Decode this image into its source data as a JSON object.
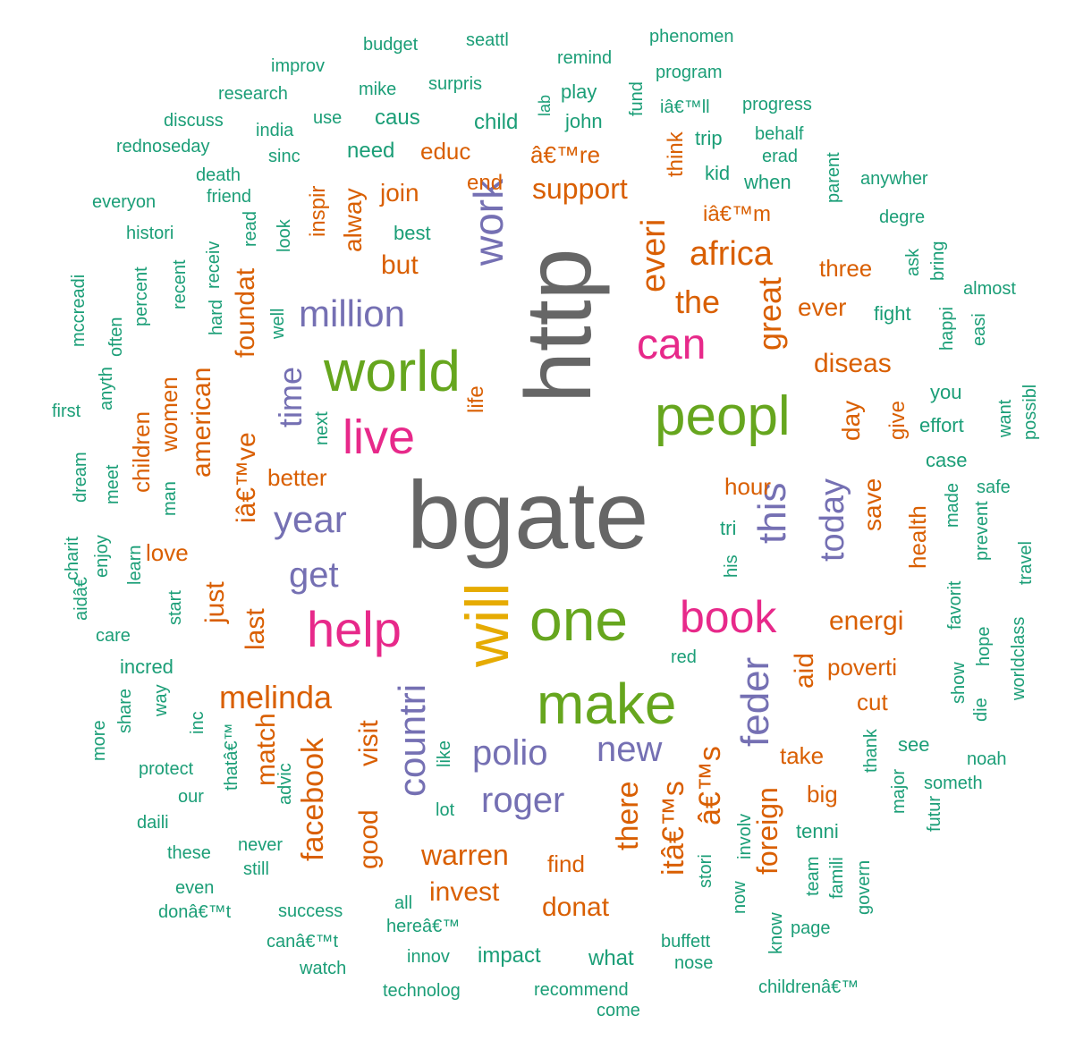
{
  "palette": {
    "t1": "#1b9e77",
    "t2": "#d95f02",
    "t3": "#7570b3",
    "t4": "#e7298a",
    "t5": "#66a61e",
    "t6": "#e6ab02",
    "t7": "#666666"
  },
  "words": [
    {
      "text": "bgate",
      "tier": "t7",
      "vertical": false
    },
    {
      "text": "http",
      "tier": "t7",
      "vertical": true
    },
    {
      "text": "will",
      "tier": "t6",
      "vertical": true
    },
    {
      "text": "world",
      "tier": "t5",
      "vertical": false
    },
    {
      "text": "peopl",
      "tier": "t5",
      "vertical": false
    },
    {
      "text": "one",
      "tier": "t5",
      "vertical": false
    },
    {
      "text": "make",
      "tier": "t5",
      "vertical": false
    },
    {
      "text": "live",
      "tier": "t4",
      "vertical": false
    },
    {
      "text": "can",
      "tier": "t4",
      "vertical": false
    },
    {
      "text": "help",
      "tier": "t4",
      "vertical": false
    },
    {
      "text": "book",
      "tier": "t4",
      "vertical": false
    },
    {
      "text": "million",
      "tier": "t3",
      "vertical": false
    },
    {
      "text": "work",
      "tier": "t3",
      "vertical": true
    },
    {
      "text": "year",
      "tier": "t3",
      "vertical": false
    },
    {
      "text": "get",
      "tier": "t3",
      "vertical": false
    },
    {
      "text": "time",
      "tier": "t3",
      "vertical": true
    },
    {
      "text": "this",
      "tier": "t3",
      "vertical": true
    },
    {
      "text": "today",
      "tier": "t3",
      "vertical": true
    },
    {
      "text": "feder",
      "tier": "t3",
      "vertical": true
    },
    {
      "text": "polio",
      "tier": "t3",
      "vertical": false
    },
    {
      "text": "new",
      "tier": "t3",
      "vertical": false
    },
    {
      "text": "roger",
      "tier": "t3",
      "vertical": false
    },
    {
      "text": "countri",
      "tier": "t3",
      "vertical": true
    },
    {
      "text": "africa",
      "tier": "t2",
      "vertical": false
    },
    {
      "text": "everi",
      "tier": "t2",
      "vertical": true
    },
    {
      "text": "the",
      "tier": "t2",
      "vertical": false
    },
    {
      "text": "great",
      "tier": "t2",
      "vertical": true
    },
    {
      "text": "support",
      "tier": "t2",
      "vertical": false
    },
    {
      "text": "join",
      "tier": "t2",
      "vertical": false
    },
    {
      "text": "but",
      "tier": "t2",
      "vertical": false
    },
    {
      "text": "alway",
      "tier": "t2",
      "vertical": true
    },
    {
      "text": "inspir",
      "tier": "t2",
      "vertical": true
    },
    {
      "text": "foundat",
      "tier": "t2",
      "vertical": true
    },
    {
      "text": "iâ€™ve",
      "tier": "t2",
      "vertical": true
    },
    {
      "text": "american",
      "tier": "t2",
      "vertical": true
    },
    {
      "text": "melinda",
      "tier": "t2",
      "vertical": false
    },
    {
      "text": "just",
      "tier": "t2",
      "vertical": true
    },
    {
      "text": "last",
      "tier": "t2",
      "vertical": true
    },
    {
      "text": "energi",
      "tier": "t2",
      "vertical": false
    },
    {
      "text": "aid",
      "tier": "t2",
      "vertical": true
    },
    {
      "text": "diseas",
      "tier": "t2",
      "vertical": false
    },
    {
      "text": "ever",
      "tier": "t2",
      "vertical": false
    },
    {
      "text": "three",
      "tier": "t2",
      "vertical": false
    },
    {
      "text": "day",
      "tier": "t2",
      "vertical": true
    },
    {
      "text": "save",
      "tier": "t2",
      "vertical": true
    },
    {
      "text": "hour",
      "tier": "t2",
      "vertical": false
    },
    {
      "text": "poverti",
      "tier": "t2",
      "vertical": false
    },
    {
      "text": "cut",
      "tier": "t2",
      "vertical": false
    },
    {
      "text": "take",
      "tier": "t2",
      "vertical": false
    },
    {
      "text": "big",
      "tier": "t2",
      "vertical": false
    },
    {
      "text": "warren",
      "tier": "t2",
      "vertical": false
    },
    {
      "text": "invest",
      "tier": "t2",
      "vertical": false
    },
    {
      "text": "donat",
      "tier": "t2",
      "vertical": false
    },
    {
      "text": "find",
      "tier": "t2",
      "vertical": false
    },
    {
      "text": "there",
      "tier": "t2",
      "vertical": true
    },
    {
      "text": "itâ€™s",
      "tier": "t2",
      "vertical": true
    },
    {
      "text": "â€™s",
      "tier": "t2",
      "vertical": true
    },
    {
      "text": "foreign",
      "tier": "t2",
      "vertical": true
    },
    {
      "text": "facebook",
      "tier": "t2",
      "vertical": true
    },
    {
      "text": "good",
      "tier": "t2",
      "vertical": true
    },
    {
      "text": "visit",
      "tier": "t2",
      "vertical": true
    },
    {
      "text": "match",
      "tier": "t2",
      "vertical": true
    },
    {
      "text": "love",
      "tier": "t2",
      "vertical": false
    },
    {
      "text": "better",
      "tier": "t2",
      "vertical": false
    },
    {
      "text": "women",
      "tier": "t2",
      "vertical": true
    },
    {
      "text": "children",
      "tier": "t2",
      "vertical": true
    },
    {
      "text": "life",
      "tier": "t2",
      "vertical": true
    },
    {
      "text": "end",
      "tier": "t2",
      "vertical": false
    },
    {
      "text": "educ",
      "tier": "t2",
      "vertical": false
    },
    {
      "text": "â€™re",
      "tier": "t2",
      "vertical": false
    },
    {
      "text": "think",
      "tier": "t2",
      "vertical": true
    },
    {
      "text": "iâ€™m",
      "tier": "t2",
      "vertical": false
    },
    {
      "text": "give",
      "tier": "t2",
      "vertical": true
    },
    {
      "text": "health",
      "tier": "t2",
      "vertical": true
    },
    {
      "text": "budget",
      "tier": "t1",
      "vertical": false
    },
    {
      "text": "seattl",
      "tier": "t1",
      "vertical": false
    },
    {
      "text": "phenomen",
      "tier": "t1",
      "vertical": false
    },
    {
      "text": "improv",
      "tier": "t1",
      "vertical": false
    },
    {
      "text": "remind",
      "tier": "t1",
      "vertical": false
    },
    {
      "text": "program",
      "tier": "t1",
      "vertical": false
    },
    {
      "text": "research",
      "tier": "t1",
      "vertical": false
    },
    {
      "text": "mike",
      "tier": "t1",
      "vertical": false
    },
    {
      "text": "surpris",
      "tier": "t1",
      "vertical": false
    },
    {
      "text": "play",
      "tier": "t1",
      "vertical": false
    },
    {
      "text": "fund",
      "tier": "t1",
      "vertical": true
    },
    {
      "text": "discuss",
      "tier": "t1",
      "vertical": false
    },
    {
      "text": "use",
      "tier": "t1",
      "vertical": false
    },
    {
      "text": "caus",
      "tier": "t1",
      "vertical": false
    },
    {
      "text": "child",
      "tier": "t1",
      "vertical": false
    },
    {
      "text": "lab",
      "tier": "t1",
      "vertical": true
    },
    {
      "text": "john",
      "tier": "t1",
      "vertical": false
    },
    {
      "text": "iâ€™ll",
      "tier": "t1",
      "vertical": false
    },
    {
      "text": "progress",
      "tier": "t1",
      "vertical": false
    },
    {
      "text": "india",
      "tier": "t1",
      "vertical": false
    },
    {
      "text": "rednoseday",
      "tier": "t1",
      "vertical": false
    },
    {
      "text": "sinc",
      "tier": "t1",
      "vertical": false
    },
    {
      "text": "need",
      "tier": "t1",
      "vertical": false
    },
    {
      "text": "trip",
      "tier": "t1",
      "vertical": false
    },
    {
      "text": "behalf",
      "tier": "t1",
      "vertical": false
    },
    {
      "text": "erad",
      "tier": "t1",
      "vertical": false
    },
    {
      "text": "death",
      "tier": "t1",
      "vertical": false
    },
    {
      "text": "kid",
      "tier": "t1",
      "vertical": false
    },
    {
      "text": "when",
      "tier": "t1",
      "vertical": false
    },
    {
      "text": "parent",
      "tier": "t1",
      "vertical": true
    },
    {
      "text": "anywher",
      "tier": "t1",
      "vertical": false
    },
    {
      "text": "everyon",
      "tier": "t1",
      "vertical": false
    },
    {
      "text": "friend",
      "tier": "t1",
      "vertical": false
    },
    {
      "text": "degre",
      "tier": "t1",
      "vertical": false
    },
    {
      "text": "histori",
      "tier": "t1",
      "vertical": false
    },
    {
      "text": "read",
      "tier": "t1",
      "vertical": true
    },
    {
      "text": "look",
      "tier": "t1",
      "vertical": true
    },
    {
      "text": "best",
      "tier": "t1",
      "vertical": false
    },
    {
      "text": "receiv",
      "tier": "t1",
      "vertical": true
    },
    {
      "text": "ask",
      "tier": "t1",
      "vertical": true
    },
    {
      "text": "bring",
      "tier": "t1",
      "vertical": true
    },
    {
      "text": "almost",
      "tier": "t1",
      "vertical": false
    },
    {
      "text": "recent",
      "tier": "t1",
      "vertical": true
    },
    {
      "text": "percent",
      "tier": "t1",
      "vertical": true
    },
    {
      "text": "hard",
      "tier": "t1",
      "vertical": true
    },
    {
      "text": "well",
      "tier": "t1",
      "vertical": true
    },
    {
      "text": "happi",
      "tier": "t1",
      "vertical": true
    },
    {
      "text": "easi",
      "tier": "t1",
      "vertical": true
    },
    {
      "text": "mccreadi",
      "tier": "t1",
      "vertical": true
    },
    {
      "text": "often",
      "tier": "t1",
      "vertical": true
    },
    {
      "text": "fight",
      "tier": "t1",
      "vertical": false
    },
    {
      "text": "you",
      "tier": "t1",
      "vertical": false
    },
    {
      "text": "effort",
      "tier": "t1",
      "vertical": false
    },
    {
      "text": "want",
      "tier": "t1",
      "vertical": true
    },
    {
      "text": "possibl",
      "tier": "t1",
      "vertical": true
    },
    {
      "text": "first",
      "tier": "t1",
      "vertical": false
    },
    {
      "text": "anyth",
      "tier": "t1",
      "vertical": true
    },
    {
      "text": "next",
      "tier": "t1",
      "vertical": true
    },
    {
      "text": "case",
      "tier": "t1",
      "vertical": false
    },
    {
      "text": "dream",
      "tier": "t1",
      "vertical": true
    },
    {
      "text": "meet",
      "tier": "t1",
      "vertical": true
    },
    {
      "text": "man",
      "tier": "t1",
      "vertical": true
    },
    {
      "text": "made",
      "tier": "t1",
      "vertical": true
    },
    {
      "text": "safe",
      "tier": "t1",
      "vertical": false
    },
    {
      "text": "prevent",
      "tier": "t1",
      "vertical": true
    },
    {
      "text": "tri",
      "tier": "t1",
      "vertical": false
    },
    {
      "text": "charit",
      "tier": "t1",
      "vertical": true
    },
    {
      "text": "enjoy",
      "tier": "t1",
      "vertical": true
    },
    {
      "text": "learn",
      "tier": "t1",
      "vertical": true
    },
    {
      "text": "his",
      "tier": "t1",
      "vertical": true
    },
    {
      "text": "travel",
      "tier": "t1",
      "vertical": true
    },
    {
      "text": "favorit",
      "tier": "t1",
      "vertical": true
    },
    {
      "text": "aidâ€",
      "tier": "t1",
      "vertical": true
    },
    {
      "text": "care",
      "tier": "t1",
      "vertical": false
    },
    {
      "text": "start",
      "tier": "t1",
      "vertical": true
    },
    {
      "text": "hope",
      "tier": "t1",
      "vertical": true
    },
    {
      "text": "worldclass",
      "tier": "t1",
      "vertical": true
    },
    {
      "text": "red",
      "tier": "t1",
      "vertical": false
    },
    {
      "text": "incred",
      "tier": "t1",
      "vertical": false
    },
    {
      "text": "show",
      "tier": "t1",
      "vertical": true
    },
    {
      "text": "die",
      "tier": "t1",
      "vertical": true
    },
    {
      "text": "way",
      "tier": "t1",
      "vertical": true
    },
    {
      "text": "share",
      "tier": "t1",
      "vertical": true
    },
    {
      "text": "inc",
      "tier": "t1",
      "vertical": true
    },
    {
      "text": "more",
      "tier": "t1",
      "vertical": true
    },
    {
      "text": "see",
      "tier": "t1",
      "vertical": false
    },
    {
      "text": "noah",
      "tier": "t1",
      "vertical": false
    },
    {
      "text": "protect",
      "tier": "t1",
      "vertical": false
    },
    {
      "text": "thank",
      "tier": "t1",
      "vertical": true
    },
    {
      "text": "our",
      "tier": "t1",
      "vertical": false
    },
    {
      "text": "thatâ€™",
      "tier": "t1",
      "vertical": true
    },
    {
      "text": "advic",
      "tier": "t1",
      "vertical": true
    },
    {
      "text": "like",
      "tier": "t1",
      "vertical": true
    },
    {
      "text": "lot",
      "tier": "t1",
      "vertical": false
    },
    {
      "text": "involv",
      "tier": "t1",
      "vertical": true
    },
    {
      "text": "major",
      "tier": "t1",
      "vertical": true
    },
    {
      "text": "someth",
      "tier": "t1",
      "vertical": false
    },
    {
      "text": "daili",
      "tier": "t1",
      "vertical": false
    },
    {
      "text": "tenni",
      "tier": "t1",
      "vertical": false
    },
    {
      "text": "futur",
      "tier": "t1",
      "vertical": true
    },
    {
      "text": "these",
      "tier": "t1",
      "vertical": false
    },
    {
      "text": "never",
      "tier": "t1",
      "vertical": false
    },
    {
      "text": "still",
      "tier": "t1",
      "vertical": false
    },
    {
      "text": "team",
      "tier": "t1",
      "vertical": true
    },
    {
      "text": "famili",
      "tier": "t1",
      "vertical": true
    },
    {
      "text": "govern",
      "tier": "t1",
      "vertical": true
    },
    {
      "text": "even",
      "tier": "t1",
      "vertical": false
    },
    {
      "text": "all",
      "tier": "t1",
      "vertical": false
    },
    {
      "text": "stori",
      "tier": "t1",
      "vertical": true
    },
    {
      "text": "now",
      "tier": "t1",
      "vertical": true
    },
    {
      "text": "donâ€™t",
      "tier": "t1",
      "vertical": false
    },
    {
      "text": "success",
      "tier": "t1",
      "vertical": false
    },
    {
      "text": "hereâ€™",
      "tier": "t1",
      "vertical": false
    },
    {
      "text": "know",
      "tier": "t1",
      "vertical": true
    },
    {
      "text": "page",
      "tier": "t1",
      "vertical": false
    },
    {
      "text": "canâ€™t",
      "tier": "t1",
      "vertical": false
    },
    {
      "text": "impact",
      "tier": "t1",
      "vertical": false
    },
    {
      "text": "buffett",
      "tier": "t1",
      "vertical": false
    },
    {
      "text": "innov",
      "tier": "t1",
      "vertical": false
    },
    {
      "text": "what",
      "tier": "t1",
      "vertical": false
    },
    {
      "text": "nose",
      "tier": "t1",
      "vertical": false
    },
    {
      "text": "watch",
      "tier": "t1",
      "vertical": false
    },
    {
      "text": "childrenâ€™",
      "tier": "t1",
      "vertical": false
    },
    {
      "text": "technolog",
      "tier": "t1",
      "vertical": false
    },
    {
      "text": "recommend",
      "tier": "t1",
      "vertical": false
    },
    {
      "text": "come",
      "tier": "t1",
      "vertical": false
    }
  ]
}
